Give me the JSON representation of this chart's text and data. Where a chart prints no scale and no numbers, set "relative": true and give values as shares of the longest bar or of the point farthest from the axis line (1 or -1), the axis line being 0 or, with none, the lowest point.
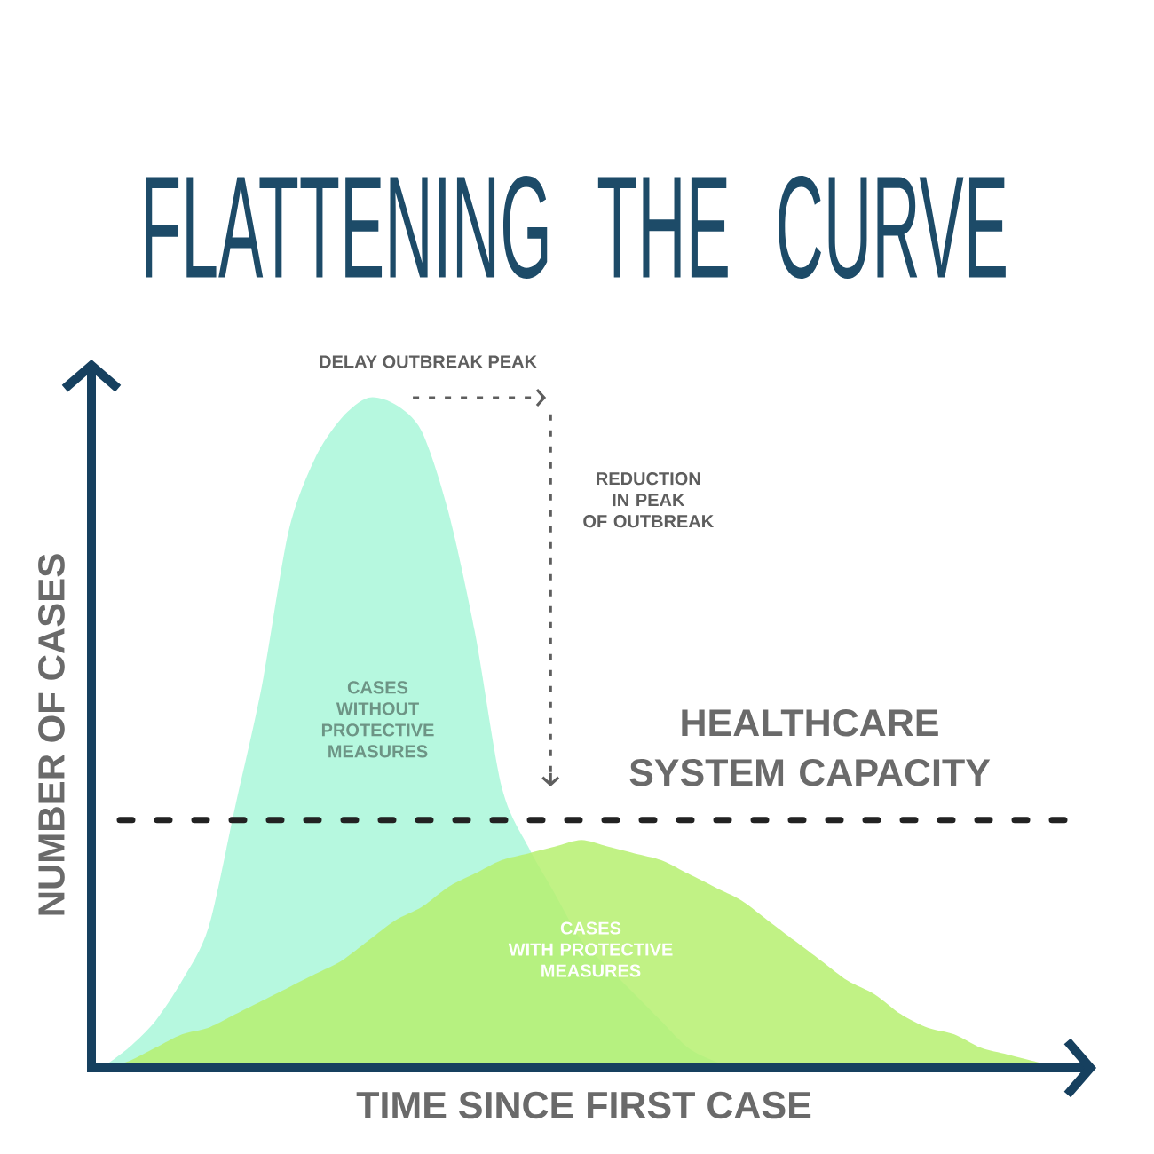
{
  "chart_data": {
    "type": "area",
    "title": "FLATTENING THE CURVE",
    "xlabel": "TIME SINCE FIRST CASE",
    "ylabel": "NUMBER OF CASES",
    "relative": true,
    "categories": [
      null,
      null,
      null,
      null,
      null,
      null,
      null,
      null,
      null,
      null,
      null,
      null,
      null,
      null,
      null,
      null,
      null,
      null,
      null,
      null,
      null,
      null,
      null,
      null,
      null,
      null,
      null,
      null,
      null,
      null,
      null,
      null,
      null,
      null,
      null,
      null,
      null
    ],
    "series": [
      {
        "name": "CASES\nWITHOUT\nPROTECTIVE\nMEASURES",
        "color": "#b6f8df",
        "values": [
          0,
          0.03,
          0.07,
          0.13,
          0.21,
          0.39,
          0.57,
          0.8,
          0.91,
          0.97,
          1,
          0.99,
          0.95,
          0.83,
          0.65,
          0.42,
          0.33,
          0.26,
          0.19,
          0.15,
          0.11,
          0.07,
          0.03,
          0.01,
          0,
          0,
          0,
          0,
          0,
          0,
          0,
          0,
          0,
          0,
          0,
          0,
          0
        ]
      },
      {
        "name": "CASES\nWITH PROTECTIVE\nMEASURES",
        "color": "#b6f070",
        "values": [
          0,
          0.01,
          0.03,
          0.05,
          0.06,
          0.08,
          0.1,
          0.12,
          0.14,
          0.16,
          0.19,
          0.22,
          0.24,
          0.27,
          0.29,
          0.31,
          0.32,
          0.33,
          0.34,
          0.33,
          0.32,
          0.31,
          0.29,
          0.27,
          0.25,
          0.22,
          0.19,
          0.16,
          0.13,
          0.11,
          0.08,
          0.06,
          0.05,
          0.03,
          0.02,
          0.01,
          0
        ]
      }
    ],
    "ref_lines": [
      {
        "axis": "y",
        "value": 0.37,
        "label": "HEALTHCARE\nSYSTEM CAPACITY",
        "color": "#222222",
        "line_style": "dashed"
      }
    ],
    "annotations": [
      "DELAY OUTBREAK PEAK",
      "REDUCTION\nIN PEAK\nOF OUTBREAK"
    ]
  }
}
